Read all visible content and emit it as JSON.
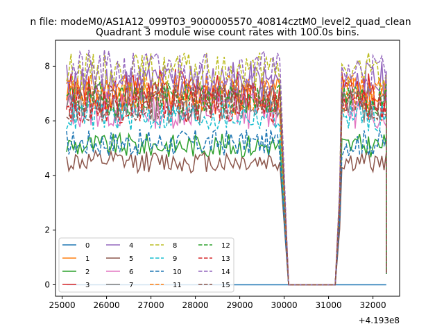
{
  "suptitle": "n file: modeM0/AS1A12_099T03_9000005570_40814cztM0_level2_quad_clean",
  "chart_data": {
    "type": "line",
    "title": "Quadrant 3 module wise count rates with 100.0s bins.",
    "xlabel": "",
    "ylabel": "",
    "x_offset_label": "+4.193e8",
    "xlim": [
      24850,
      32600
    ],
    "ylim": [
      -0.42,
      8.95
    ],
    "x_ticks": [
      25000,
      26000,
      27000,
      28000,
      29000,
      30000,
      31000,
      32000
    ],
    "y_ticks": [
      0,
      2,
      4,
      6,
      8
    ],
    "grid": false,
    "legend": {
      "placement": "lower-left",
      "columns": 4
    },
    "x_segments": [
      [
        25100,
        29900
      ],
      [
        31250,
        32300
      ]
    ],
    "gap_window": [
      30100,
      31150
    ],
    "series": [
      {
        "name": "0",
        "color": "#1f77b4",
        "dash": false,
        "base": 0.0,
        "amp": 0.0
      },
      {
        "name": "1",
        "color": "#ff7f0e",
        "dash": false,
        "base": 6.9,
        "amp": 0.35
      },
      {
        "name": "2",
        "color": "#2ca02c",
        "dash": false,
        "base": 5.1,
        "amp": 0.22
      },
      {
        "name": "3",
        "color": "#d62728",
        "dash": false,
        "base": 7.1,
        "amp": 0.4
      },
      {
        "name": "4",
        "color": "#9467bd",
        "dash": false,
        "base": 7.4,
        "amp": 0.4
      },
      {
        "name": "5",
        "color": "#8c564b",
        "dash": false,
        "base": 4.5,
        "amp": 0.2
      },
      {
        "name": "6",
        "color": "#e377c2",
        "dash": false,
        "base": 6.4,
        "amp": 0.35
      },
      {
        "name": "7",
        "color": "#7f7f7f",
        "dash": false,
        "base": 6.6,
        "amp": 0.35
      },
      {
        "name": "8",
        "color": "#bcbd22",
        "dash": true,
        "base": 7.8,
        "amp": 0.35
      },
      {
        "name": "9",
        "color": "#17becf",
        "dash": true,
        "base": 6.2,
        "amp": 0.3
      },
      {
        "name": "10",
        "color": "#1f77b4",
        "dash": true,
        "base": 5.2,
        "amp": 0.25
      },
      {
        "name": "11",
        "color": "#ff7f0e",
        "dash": true,
        "base": 7.0,
        "amp": 0.35
      },
      {
        "name": "12",
        "color": "#2ca02c",
        "dash": true,
        "base": 6.8,
        "amp": 0.3
      },
      {
        "name": "13",
        "color": "#d62728",
        "dash": true,
        "base": 6.6,
        "amp": 0.35
      },
      {
        "name": "14",
        "color": "#9467bd",
        "dash": true,
        "base": 7.8,
        "amp": 0.4
      },
      {
        "name": "15",
        "color": "#8c564b",
        "dash": true,
        "base": 6.7,
        "amp": 0.35
      }
    ]
  }
}
